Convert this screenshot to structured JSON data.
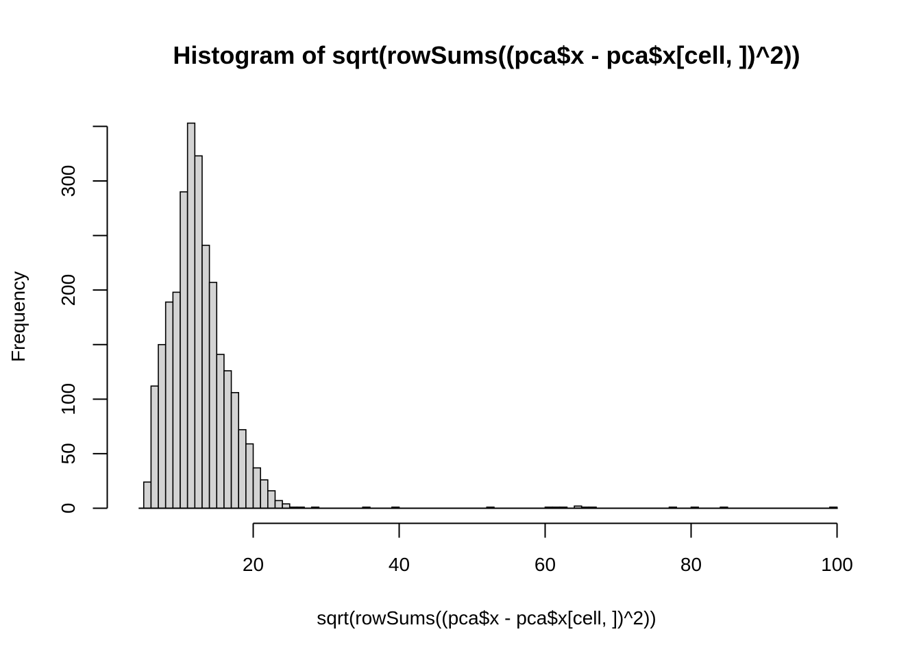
{
  "chart_data": {
    "type": "bar",
    "title": "Histogram of sqrt(rowSums((pca$x - pca$x[cell, ])^2))",
    "xlabel": "sqrt(rowSums((pca$x - pca$x[cell, ])^2))",
    "ylabel": "Frequency",
    "xlim": [
      0,
      100
    ],
    "ylim": [
      0,
      350
    ],
    "x_ticks": [
      20,
      40,
      60,
      80,
      100
    ],
    "y_ticks": [
      0,
      50,
      100,
      150,
      200,
      250,
      300,
      350
    ],
    "y_tick_labels": [
      "0",
      "50",
      "100",
      "",
      "200",
      "",
      "300",
      ""
    ],
    "grid": false,
    "bin_width": 1,
    "bar_fill": "#d3d3d3",
    "bar_stroke": "#000000",
    "bins": [
      {
        "x0": 5,
        "x1": 6,
        "count": 24
      },
      {
        "x0": 6,
        "x1": 7,
        "count": 112
      },
      {
        "x0": 7,
        "x1": 8,
        "count": 150
      },
      {
        "x0": 8,
        "x1": 9,
        "count": 189
      },
      {
        "x0": 9,
        "x1": 10,
        "count": 198
      },
      {
        "x0": 10,
        "x1": 11,
        "count": 290
      },
      {
        "x0": 11,
        "x1": 12,
        "count": 353
      },
      {
        "x0": 12,
        "x1": 13,
        "count": 323
      },
      {
        "x0": 13,
        "x1": 14,
        "count": 241
      },
      {
        "x0": 14,
        "x1": 15,
        "count": 207
      },
      {
        "x0": 15,
        "x1": 16,
        "count": 141
      },
      {
        "x0": 16,
        "x1": 17,
        "count": 126
      },
      {
        "x0": 17,
        "x1": 18,
        "count": 106
      },
      {
        "x0": 18,
        "x1": 19,
        "count": 72
      },
      {
        "x0": 19,
        "x1": 20,
        "count": 59
      },
      {
        "x0": 20,
        "x1": 21,
        "count": 37
      },
      {
        "x0": 21,
        "x1": 22,
        "count": 26
      },
      {
        "x0": 22,
        "x1": 23,
        "count": 16
      },
      {
        "x0": 23,
        "x1": 24,
        "count": 7
      },
      {
        "x0": 24,
        "x1": 25,
        "count": 4
      },
      {
        "x0": 25,
        "x1": 26,
        "count": 1
      },
      {
        "x0": 26,
        "x1": 27,
        "count": 1
      },
      {
        "x0": 28,
        "x1": 29,
        "count": 1
      },
      {
        "x0": 35,
        "x1": 36,
        "count": 1
      },
      {
        "x0": 39,
        "x1": 40,
        "count": 1
      },
      {
        "x0": 52,
        "x1": 53,
        "count": 1
      },
      {
        "x0": 60,
        "x1": 61,
        "count": 1
      },
      {
        "x0": 61,
        "x1": 62,
        "count": 1
      },
      {
        "x0": 62,
        "x1": 63,
        "count": 1
      },
      {
        "x0": 64,
        "x1": 65,
        "count": 2
      },
      {
        "x0": 65,
        "x1": 66,
        "count": 1
      },
      {
        "x0": 66,
        "x1": 67,
        "count": 1
      },
      {
        "x0": 77,
        "x1": 78,
        "count": 1
      },
      {
        "x0": 80,
        "x1": 81,
        "count": 1
      },
      {
        "x0": 84,
        "x1": 85,
        "count": 1
      },
      {
        "x0": 99,
        "x1": 100,
        "count": 1
      }
    ]
  }
}
